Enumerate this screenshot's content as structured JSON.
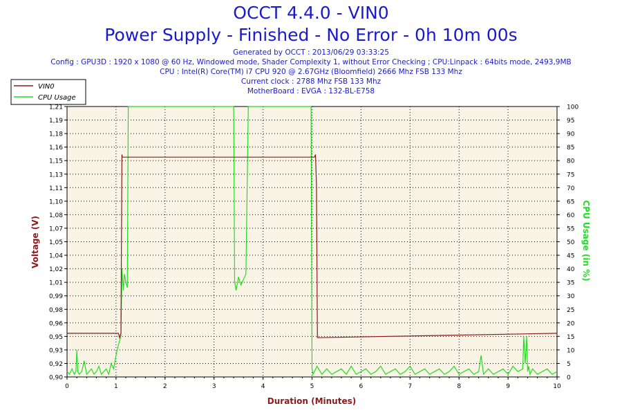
{
  "chart_data": {
    "type": "line",
    "title": "OCCT 4.4.0 - VIN0",
    "subtitle": "Power Supply - Finished - No Error - 0h 10m 00s",
    "info_lines": [
      "Generated by OCCT : 2013/06/29 03:33:25",
      "Config : GPU3D : 1920 x 1080 @ 60 Hz, Windowed mode, Shader Complexity 1, without Error Checking ; CPU:Linpack : 64bits mode, 2493,9MB",
      "CPU : Intel(R) Core(TM) i7 CPU 920 @ 2.67GHz (Bloomfield) 2666 Mhz FSB 133 Mhz",
      "Current clock : 2788 Mhz FSB 133 Mhz",
      "MotherBoard : EVGA : 132-BL-E758"
    ],
    "xlabel": "Duration (Minutes)",
    "ylabel_left": "Voltage (V)",
    "ylabel_right": "CPU Usage (in %)",
    "xlim": [
      0,
      10
    ],
    "ylim_left": [
      0.9,
      1.21
    ],
    "ylim_right": [
      0,
      100
    ],
    "x_ticks": [
      "0",
      "1",
      "2",
      "3",
      "4",
      "5",
      "6",
      "7",
      "8",
      "9",
      "10"
    ],
    "y_left_ticks": [
      "0,90",
      "0,92",
      "0,93",
      "0,95",
      "0,96",
      "0,98",
      "0,99",
      "1,01",
      "1,02",
      "1,04",
      "1,05",
      "1,07",
      "1,08",
      "1,10",
      "1,11",
      "1,13",
      "1,15",
      "1,16",
      "1,18",
      "1,19",
      "1,21"
    ],
    "y_right_ticks": [
      "0",
      "5",
      "10",
      "15",
      "20",
      "25",
      "30",
      "35",
      "40",
      "45",
      "50",
      "55",
      "60",
      "65",
      "70",
      "75",
      "80",
      "85",
      "90",
      "95",
      "100"
    ],
    "grid": true,
    "legend_position": "top-left",
    "series": [
      {
        "name": "VIN0",
        "axis": "left",
        "color": "#8b1a1a",
        "x": [
          0,
          1.05,
          1.07,
          1.1,
          1.12,
          1.13,
          1.15,
          5.05,
          5.07,
          5.09,
          5.11,
          10
        ],
        "y": [
          0.95,
          0.95,
          0.945,
          0.95,
          1.155,
          1.152,
          1.152,
          1.152,
          1.155,
          1.12,
          0.945,
          0.95
        ]
      },
      {
        "name": "CPU Usage",
        "axis": "right",
        "color": "#22dd22",
        "x": [
          0,
          0.05,
          0.1,
          0.15,
          0.18,
          0.2,
          0.22,
          0.25,
          0.3,
          0.35,
          0.4,
          0.45,
          0.5,
          0.55,
          0.6,
          0.65,
          0.7,
          0.75,
          0.8,
          0.85,
          0.9,
          0.95,
          1.0,
          1.05,
          1.1,
          1.12,
          1.15,
          1.17,
          1.2,
          1.23,
          1.25,
          1.28,
          1.3,
          3.4,
          3.42,
          3.45,
          3.5,
          3.55,
          3.6,
          3.65,
          3.7,
          3.72,
          3.75,
          4.98,
          5.0,
          5.02,
          5.05,
          5.1,
          5.2,
          5.3,
          5.4,
          5.5,
          5.6,
          5.7,
          5.8,
          5.9,
          6.0,
          6.1,
          6.2,
          6.3,
          6.4,
          6.5,
          6.6,
          6.7,
          6.8,
          6.9,
          7.0,
          7.1,
          7.2,
          7.3,
          7.4,
          7.5,
          7.6,
          7.7,
          7.8,
          7.9,
          8.0,
          8.1,
          8.2,
          8.3,
          8.4,
          8.45,
          8.5,
          8.6,
          8.7,
          8.8,
          8.9,
          9.0,
          9.1,
          9.2,
          9.3,
          9.32,
          9.35,
          9.38,
          9.4,
          9.42,
          9.45,
          9.5,
          9.6,
          9.7,
          9.8,
          9.9,
          10.0
        ],
        "y": [
          2,
          1,
          3,
          1,
          2,
          10,
          2,
          1,
          2,
          6,
          1,
          2,
          3,
          1,
          2,
          4,
          1,
          2,
          3,
          1,
          5,
          3,
          8,
          12,
          15,
          40,
          32,
          38,
          35,
          33,
          100,
          100,
          100,
          100,
          35,
          32,
          37,
          34,
          36,
          38,
          100,
          100,
          100,
          100,
          3,
          1,
          2,
          4,
          1,
          3,
          1,
          2,
          3,
          1,
          4,
          1,
          2,
          3,
          1,
          2,
          4,
          1,
          2,
          3,
          1,
          2,
          4,
          1,
          2,
          3,
          1,
          2,
          3,
          1,
          2,
          4,
          1,
          2,
          3,
          1,
          2,
          8,
          1,
          3,
          1,
          2,
          3,
          1,
          4,
          2,
          3,
          15,
          5,
          15,
          2,
          4,
          1,
          3,
          1,
          2,
          3,
          1,
          2
        ]
      }
    ]
  }
}
